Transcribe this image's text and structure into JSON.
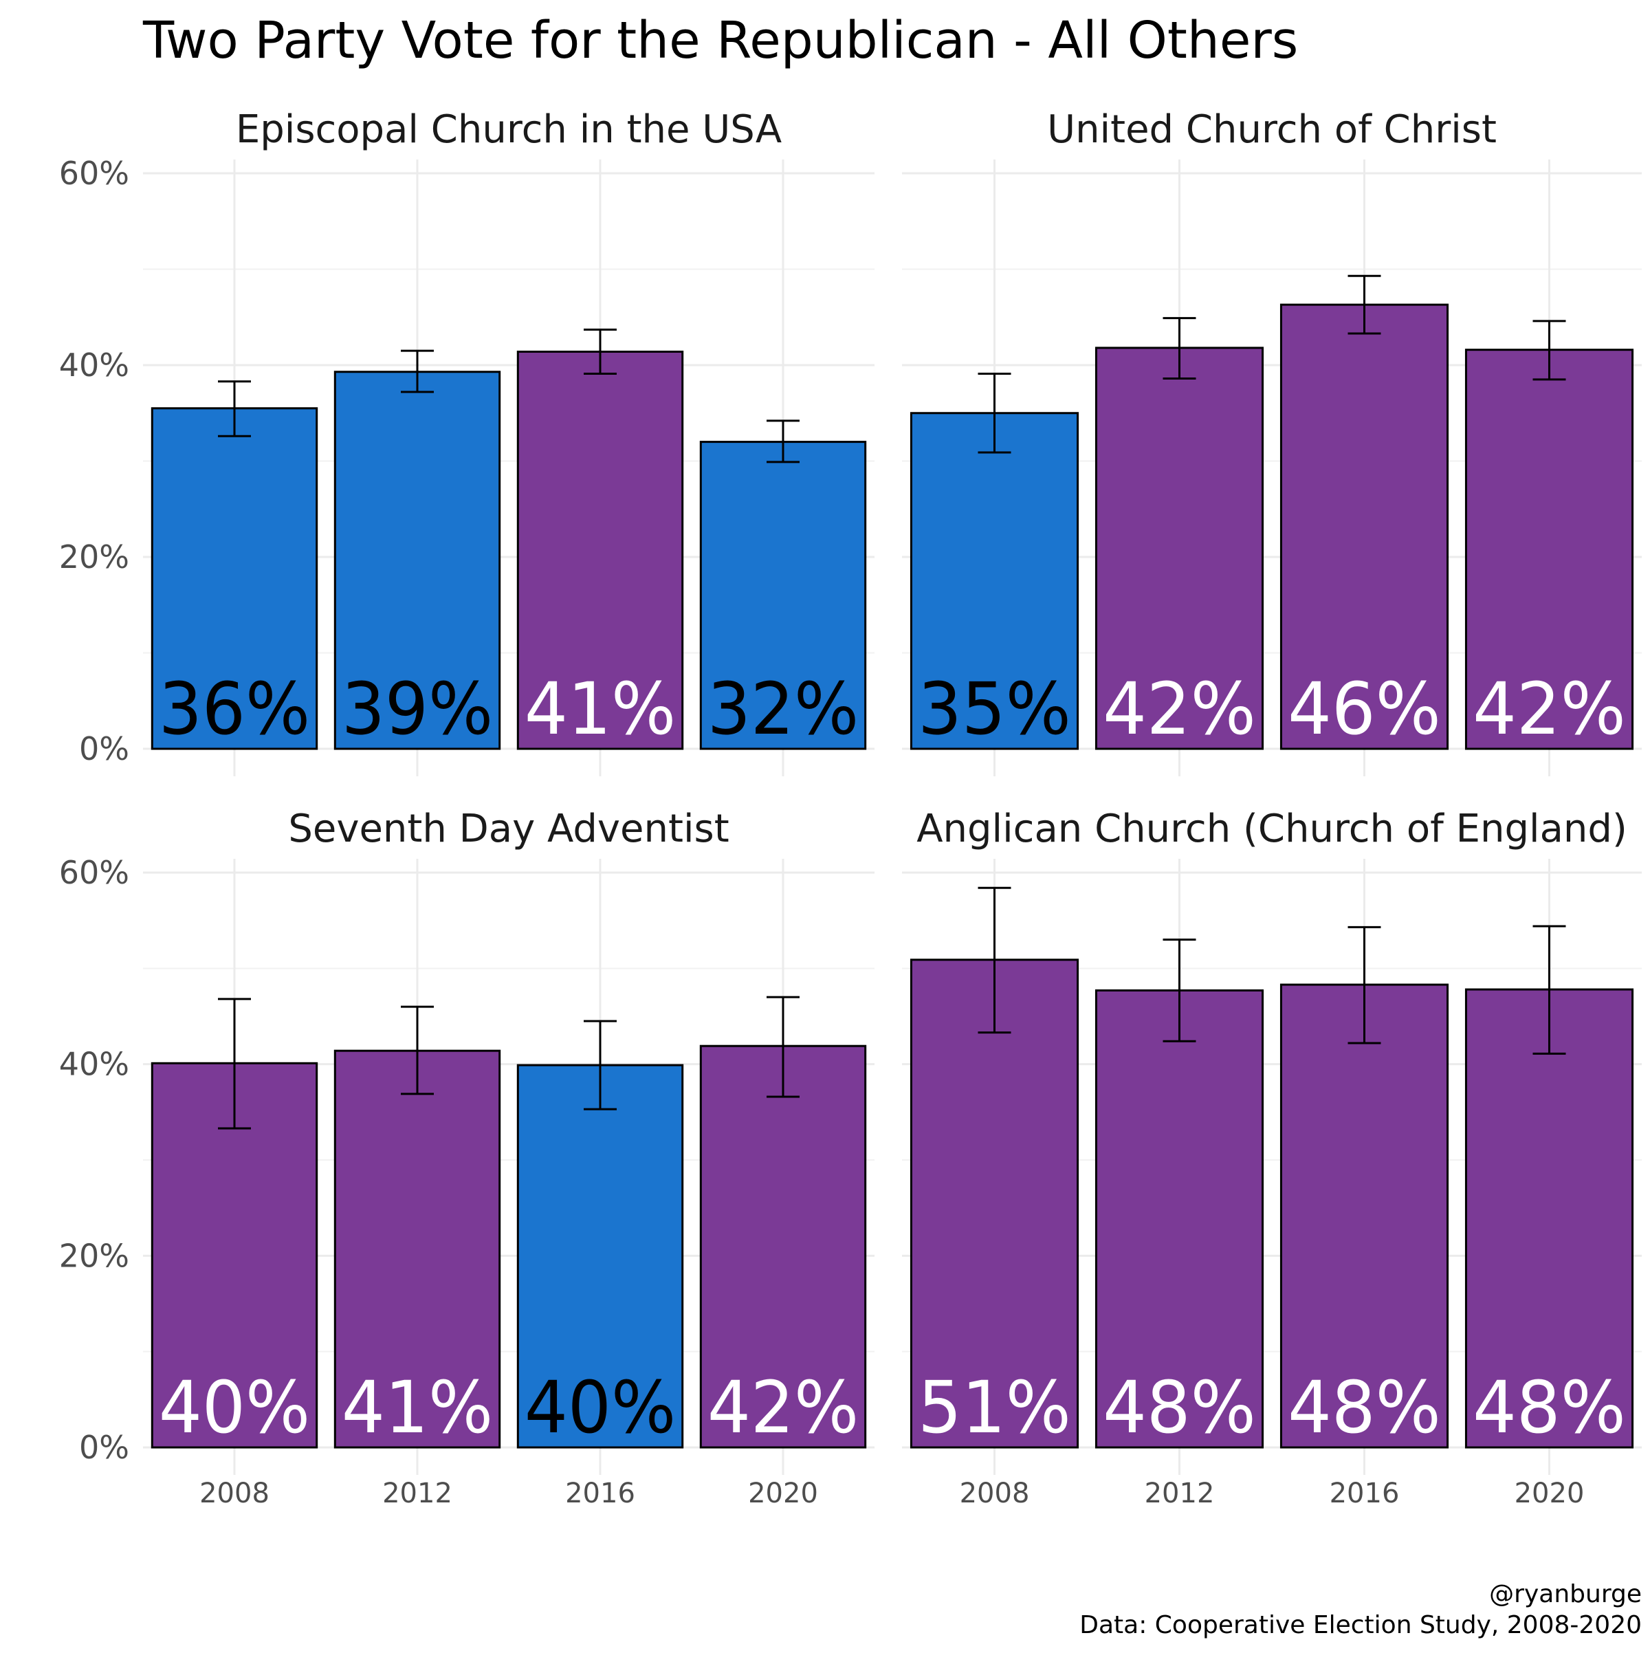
{
  "title": "Two Party Vote for the Republican - All Others",
  "caption": {
    "line1": "@ryanburge",
    "line2": "Data: Cooperative Election Study, 2008-2020"
  },
  "colors": {
    "republican": "#7b3a96",
    "democrat": "#1b75cf",
    "label_on_purple": "#ffffff",
    "label_on_blue": "#000000",
    "axis_text": "#4d4d4d"
  },
  "chart_data": {
    "type": "bar",
    "categories": [
      "2008",
      "2012",
      "2016",
      "2020"
    ],
    "y_ticks": [
      "0%",
      "20%",
      "40%",
      "60%"
    ],
    "ylim": [
      0,
      0.6
    ],
    "grid": true,
    "facets": [
      {
        "name": "Episcopal Church in the USA",
        "values": [
          0.355,
          0.393,
          0.414,
          0.32
        ],
        "ci_low": [
          0.326,
          0.372,
          0.391,
          0.299
        ],
        "ci_high": [
          0.383,
          0.415,
          0.437,
          0.342
        ],
        "labels": [
          "36%",
          "39%",
          "41%",
          "32%"
        ],
        "winner": [
          "democrat",
          "democrat",
          "republican",
          "democrat"
        ]
      },
      {
        "name": "United Church of Christ",
        "values": [
          0.35,
          0.418,
          0.463,
          0.416
        ],
        "ci_low": [
          0.309,
          0.386,
          0.433,
          0.385
        ],
        "ci_high": [
          0.391,
          0.449,
          0.493,
          0.446
        ],
        "labels": [
          "35%",
          "42%",
          "46%",
          "42%"
        ],
        "winner": [
          "democrat",
          "republican",
          "republican",
          "republican"
        ]
      },
      {
        "name": "Seventh Day Adventist",
        "values": [
          0.401,
          0.414,
          0.399,
          0.419
        ],
        "ci_low": [
          0.333,
          0.369,
          0.353,
          0.366
        ],
        "ci_high": [
          0.468,
          0.46,
          0.445,
          0.47
        ],
        "labels": [
          "40%",
          "41%",
          "40%",
          "42%"
        ],
        "winner": [
          "republican",
          "republican",
          "democrat",
          "republican"
        ]
      },
      {
        "name": "Anglican Church (Church of England)",
        "values": [
          0.509,
          0.477,
          0.483,
          0.478
        ],
        "ci_low": [
          0.433,
          0.424,
          0.422,
          0.411
        ],
        "ci_high": [
          0.584,
          0.53,
          0.543,
          0.544
        ],
        "labels": [
          "51%",
          "48%",
          "48%",
          "48%"
        ],
        "winner": [
          "republican",
          "republican",
          "republican",
          "republican"
        ]
      }
    ]
  }
}
